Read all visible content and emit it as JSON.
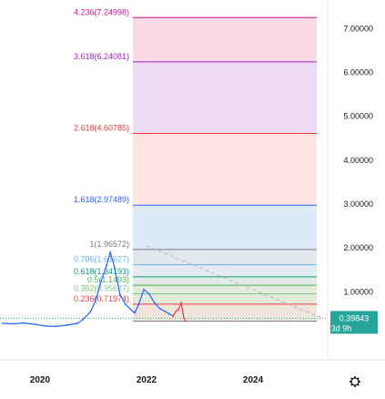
{
  "chart_data": {
    "type": "line",
    "title": "",
    "xlabel": "",
    "ylabel": "",
    "x_ticks": [
      "2020",
      "2022",
      "2024"
    ],
    "y_ticks": [
      {
        "value": 7,
        "label": "7.00000"
      },
      {
        "value": 6,
        "label": "6.00000"
      },
      {
        "value": 5,
        "label": "5.00000"
      },
      {
        "value": 4,
        "label": "4.00000"
      },
      {
        "value": 3,
        "label": "3.00000"
      },
      {
        "value": 2,
        "label": "2.00000"
      },
      {
        "value": 1,
        "label": "1.00000"
      }
    ],
    "ylim": [
      -0.55,
      7.65
    ],
    "xlim": [
      2019.25,
      2025.4
    ],
    "fib_levels": [
      {
        "ratio": "4.236",
        "price": 7.24998,
        "label": "4.236(7.24998)",
        "color": "#c3188c",
        "fill": "#f8d3e2"
      },
      {
        "ratio": "3.618",
        "price": 6.24081,
        "label": "3.618(6.24081)",
        "color": "#9c27b0",
        "fill": "#ebd6f2"
      },
      {
        "ratio": "2.618",
        "price": 4.60785,
        "label": "2.618(4.60785)",
        "color": "#e53935",
        "fill": "#fbe1dd"
      },
      {
        "ratio": "1.618",
        "price": 2.97489,
        "label": "1.618(2.97489)",
        "color": "#2962ff",
        "fill": "#d6e6f7"
      },
      {
        "ratio": "1",
        "price": 1.96572,
        "label": "1(1.96572)",
        "color": "#787b86",
        "fill": "#dbe3ea"
      },
      {
        "ratio": "0.786",
        "price": 1.61627,
        "label": "0.786(1.61627)",
        "color": "#64b5f6",
        "fill": "#dfe8ee"
      },
      {
        "ratio": "0.618",
        "price": 1.34193,
        "label": "0.618(1.34193)",
        "color": "#089981",
        "fill": "#dde7e2"
      },
      {
        "ratio": "0.5",
        "price": 1.1493,
        "label": "0.5(1.1493)",
        "color": "#4caf50",
        "fill": "#dfe6d6"
      },
      {
        "ratio": "0.382",
        "price": 0.95627,
        "label": "0.382(0.95627)",
        "color": "#81c784",
        "fill": "#dfe6d3"
      },
      {
        "ratio": "0.236",
        "price": 0.71974,
        "label": "0.236(0.71974)",
        "color": "#f23645",
        "fill": "#ece0d4"
      },
      {
        "ratio": "0",
        "price": 0.33,
        "label": "",
        "color": "#787b86",
        "fill": ""
      }
    ],
    "series": [
      {
        "color": "#2962ff",
        "x": [
          2019.3,
          2019.5,
          2019.7,
          2019.9,
          2020.1,
          2020.3,
          2020.5,
          2020.7,
          2020.8,
          2020.95,
          2021.05,
          2021.15,
          2021.25,
          2021.32,
          2021.4,
          2021.5,
          2021.6,
          2021.7,
          2021.78,
          2021.85,
          2021.95,
          2022.05,
          2022.15,
          2022.25,
          2022.35,
          2022.42,
          2022.5
        ],
        "y": [
          0.28,
          0.27,
          0.29,
          0.26,
          0.22,
          0.21,
          0.24,
          0.28,
          0.36,
          0.55,
          0.82,
          1.25,
          1.6,
          1.9,
          1.55,
          0.95,
          0.72,
          0.6,
          0.52,
          0.7,
          1.05,
          0.95,
          0.75,
          0.62,
          0.55,
          0.5,
          0.45
        ]
      },
      {
        "color": "#f23645",
        "x": [
          2022.5,
          2022.55,
          2022.6,
          2022.65,
          2022.7,
          2022.73
        ],
        "y": [
          0.45,
          0.55,
          0.6,
          0.75,
          0.4,
          0.33
        ]
      }
    ],
    "trend_line": {
      "from": [
        2022.0,
        2.05
      ],
      "to": [
        2025.3,
        0.4
      ],
      "color": "#b0b3bd"
    },
    "current_price": {
      "value": 0.39843,
      "label": "0.39843",
      "countdown": "3d 9h",
      "color": "#26a69a"
    }
  },
  "toolbar": {
    "settings_icon": "gear-icon"
  }
}
